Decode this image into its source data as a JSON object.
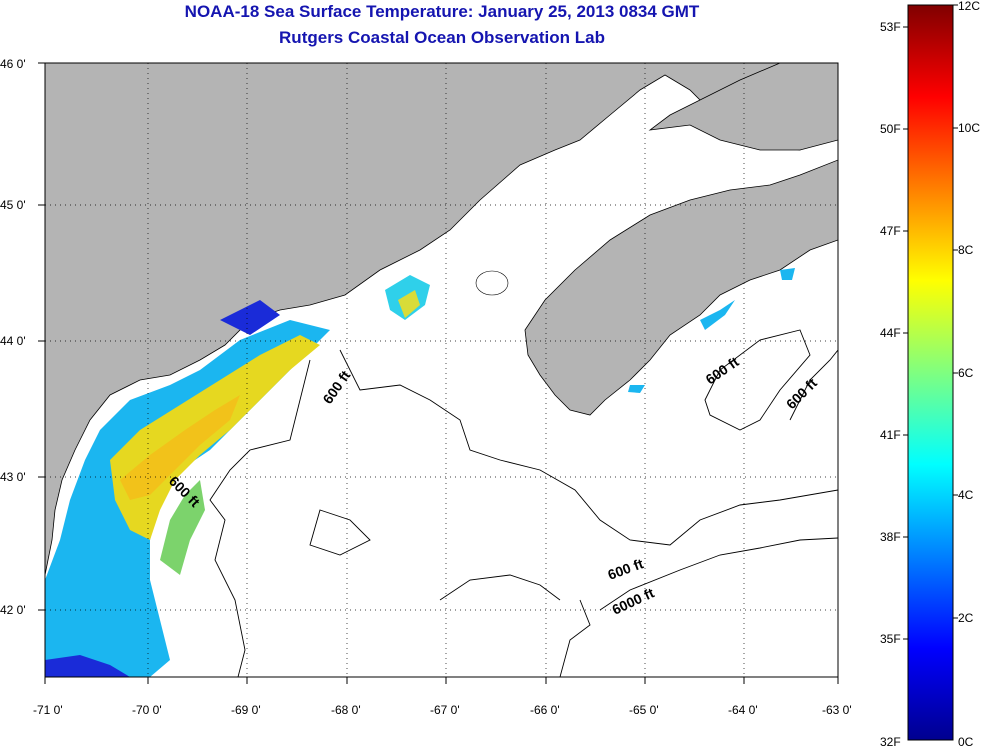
{
  "title": {
    "line1": "NOAA-18 Sea Surface Temperature:  January 25, 2013 0834 GMT",
    "line2": "Rutgers Coastal Ocean Observation Lab"
  },
  "map": {
    "lat_labels": [
      "46 0'",
      "45 0'",
      "44 0'",
      "43 0'",
      "42 0'"
    ],
    "lon_labels": [
      "-71 0'",
      "-70 0'",
      "-69 0'",
      "-68 0'",
      "-67 0'",
      "-66 0'",
      "-65 0'",
      "-64 0'",
      "-63 0'"
    ],
    "contour_labels": [
      {
        "text": "600 ft",
        "lat": 43.75,
        "lon": -68.15
      },
      {
        "text": "600 ft",
        "lat": 42.9,
        "lon": -69.9
      },
      {
        "text": "600 ft",
        "lat": 43.8,
        "lon": -64.7
      },
      {
        "text": "600 ft",
        "lat": 43.6,
        "lon": -63.4
      },
      {
        "text": "600 ft",
        "lat": 42.3,
        "lon": -65.4
      },
      {
        "text": "6000 ft",
        "lat": 42.05,
        "lon": -65.3
      }
    ],
    "colors": {
      "land": "#b4b4b4",
      "ocean": "#ffffff",
      "grid": "#000000"
    }
  },
  "colorbar": {
    "fahrenheit_labels": [
      "53F",
      "50F",
      "47F",
      "44F",
      "41F",
      "38F",
      "35F",
      "32F"
    ],
    "celsius_labels": [
      "12C",
      "10C",
      "8C",
      "6C",
      "4C",
      "2C",
      "0C"
    ]
  }
}
